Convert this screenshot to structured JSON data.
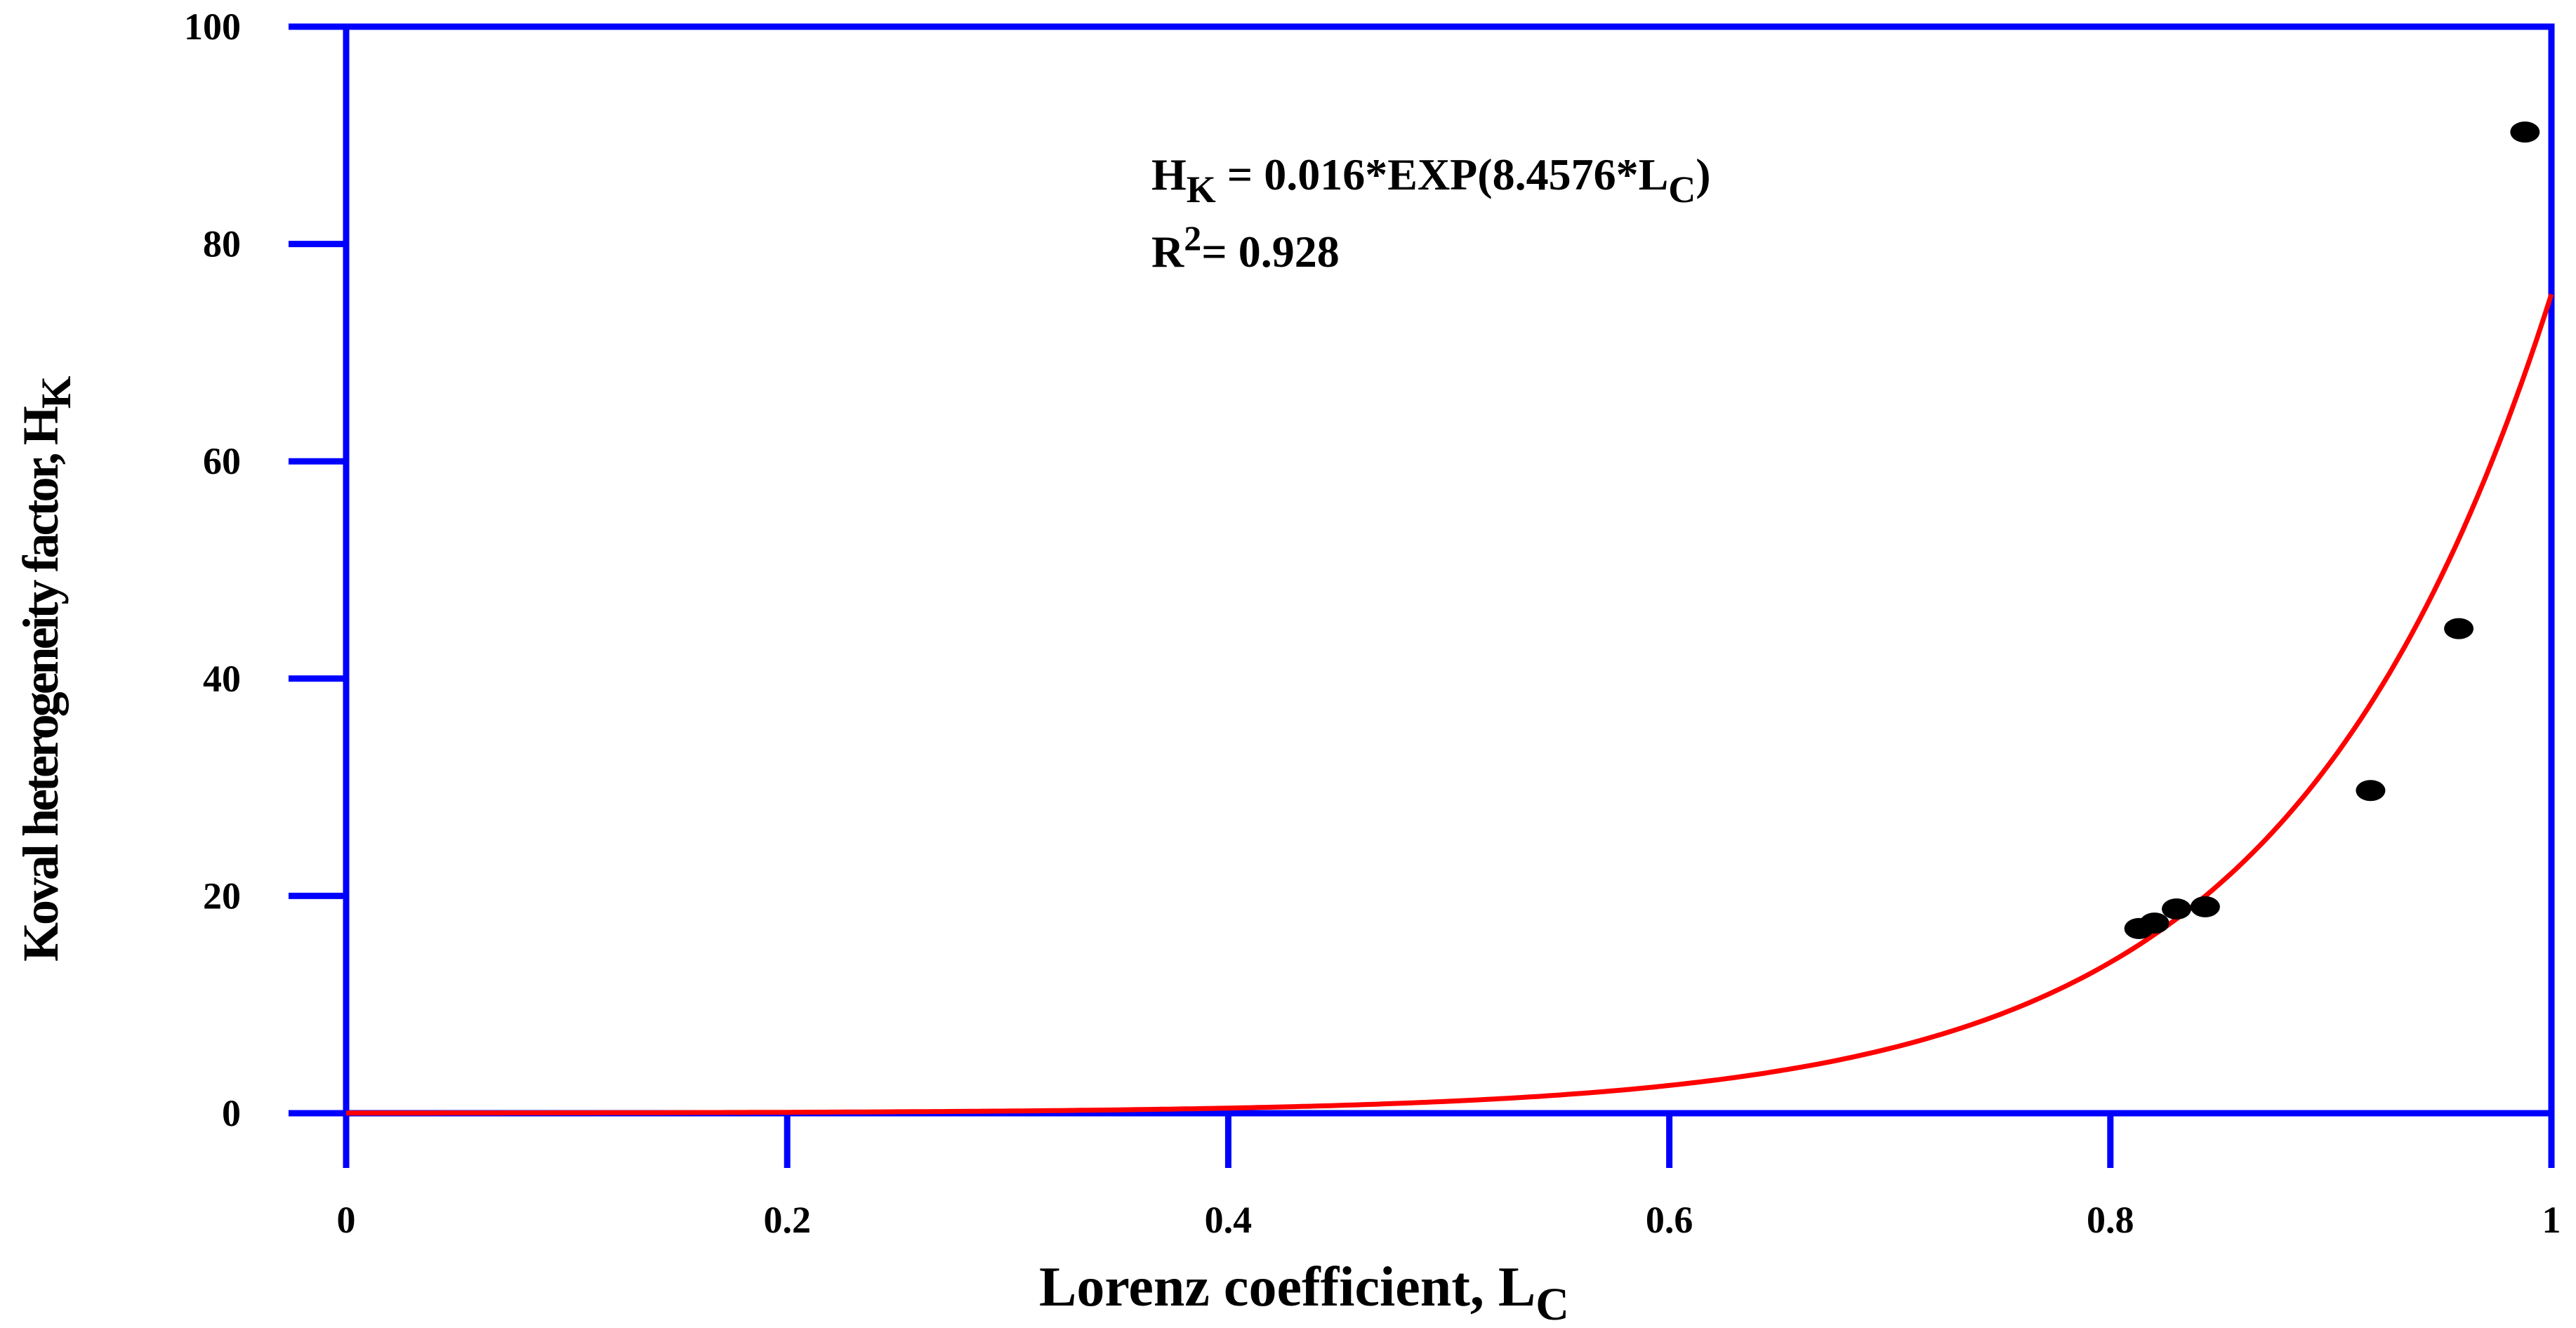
{
  "chart_data": {
    "type": "scatter",
    "title": "",
    "xlabel": {
      "main": "Lorenz coefficient, L",
      "sub": "C"
    },
    "ylabel": {
      "main": "Koval heterogeneity factor, H",
      "sub": "K"
    },
    "xlim": [
      0,
      1
    ],
    "ylim": [
      0,
      100
    ],
    "x_ticks": [
      "0",
      "0.2",
      "0.4",
      "0.6",
      "0.8",
      "1"
    ],
    "y_ticks": [
      "0",
      "20",
      "40",
      "60",
      "80",
      "100"
    ],
    "grid": false,
    "series": [
      {
        "kind": "points",
        "x": [
          0.813,
          0.82,
          0.83,
          0.843,
          0.918,
          0.958,
          0.988
        ],
        "y": [
          17.0,
          17.5,
          18.8,
          19.0,
          29.7,
          44.6,
          90.3
        ]
      },
      {
        "kind": "fit-curve",
        "equation_coefficients": {
          "a": 0.016,
          "b": 8.4576
        }
      }
    ],
    "annotations": {
      "equation": {
        "lhs": "H",
        "lhs_sub": "K",
        "rhs": " = 0.016*EXP(8.4576*L",
        "rhs_sub": "C",
        "tail": ")"
      },
      "r_squared": {
        "lhs": "R",
        "sup": "2",
        "rhs": "= 0.928"
      }
    },
    "colors": {
      "axes": "#0000ff",
      "curve": "#ff0000",
      "points": "#000000"
    }
  }
}
